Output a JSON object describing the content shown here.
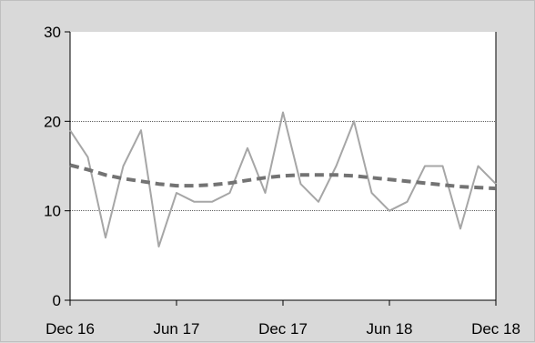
{
  "chart_data": {
    "type": "line",
    "title": "",
    "xlabel": "",
    "ylabel": "",
    "ylim": [
      0,
      30
    ],
    "y_ticks": [
      "0",
      "10",
      "20",
      "30"
    ],
    "x_ticks": [
      "Dec 16",
      "Jun 17",
      "Dec 17",
      "Jun 18",
      "Dec 18"
    ],
    "grid": "horizontal dotted at 10 and 20",
    "legend": "none",
    "x": [
      "Dec 16",
      "Jan 17",
      "Feb 17",
      "Mar 17",
      "Apr 17",
      "May 17",
      "Jun 17",
      "Jul 17",
      "Aug 17",
      "Sep 17",
      "Oct 17",
      "Nov 17",
      "Dec 17",
      "Jan 18",
      "Feb 18",
      "Mar 18",
      "Apr 18",
      "May 18",
      "Jun 18",
      "Jul 18",
      "Aug 18",
      "Sep 18",
      "Oct 18",
      "Nov 18",
      "Dec 18"
    ],
    "series": [
      {
        "style": "solid thin line",
        "color": "#a6a6a6",
        "values": [
          19,
          16,
          7,
          15,
          19,
          6,
          12,
          11,
          11,
          12,
          17,
          12,
          21,
          13,
          11,
          15,
          20,
          12,
          10,
          11,
          15,
          15,
          8,
          15,
          13
        ]
      },
      {
        "style": "dashed thick trend",
        "color": "#737373",
        "values": [
          15.1,
          14.6,
          14.0,
          13.6,
          13.3,
          13.0,
          12.8,
          12.8,
          12.9,
          13.1,
          13.4,
          13.7,
          13.9,
          14.0,
          14.0,
          14.0,
          13.9,
          13.7,
          13.5,
          13.3,
          13.1,
          12.9,
          12.7,
          12.6,
          12.5
        ]
      }
    ]
  }
}
